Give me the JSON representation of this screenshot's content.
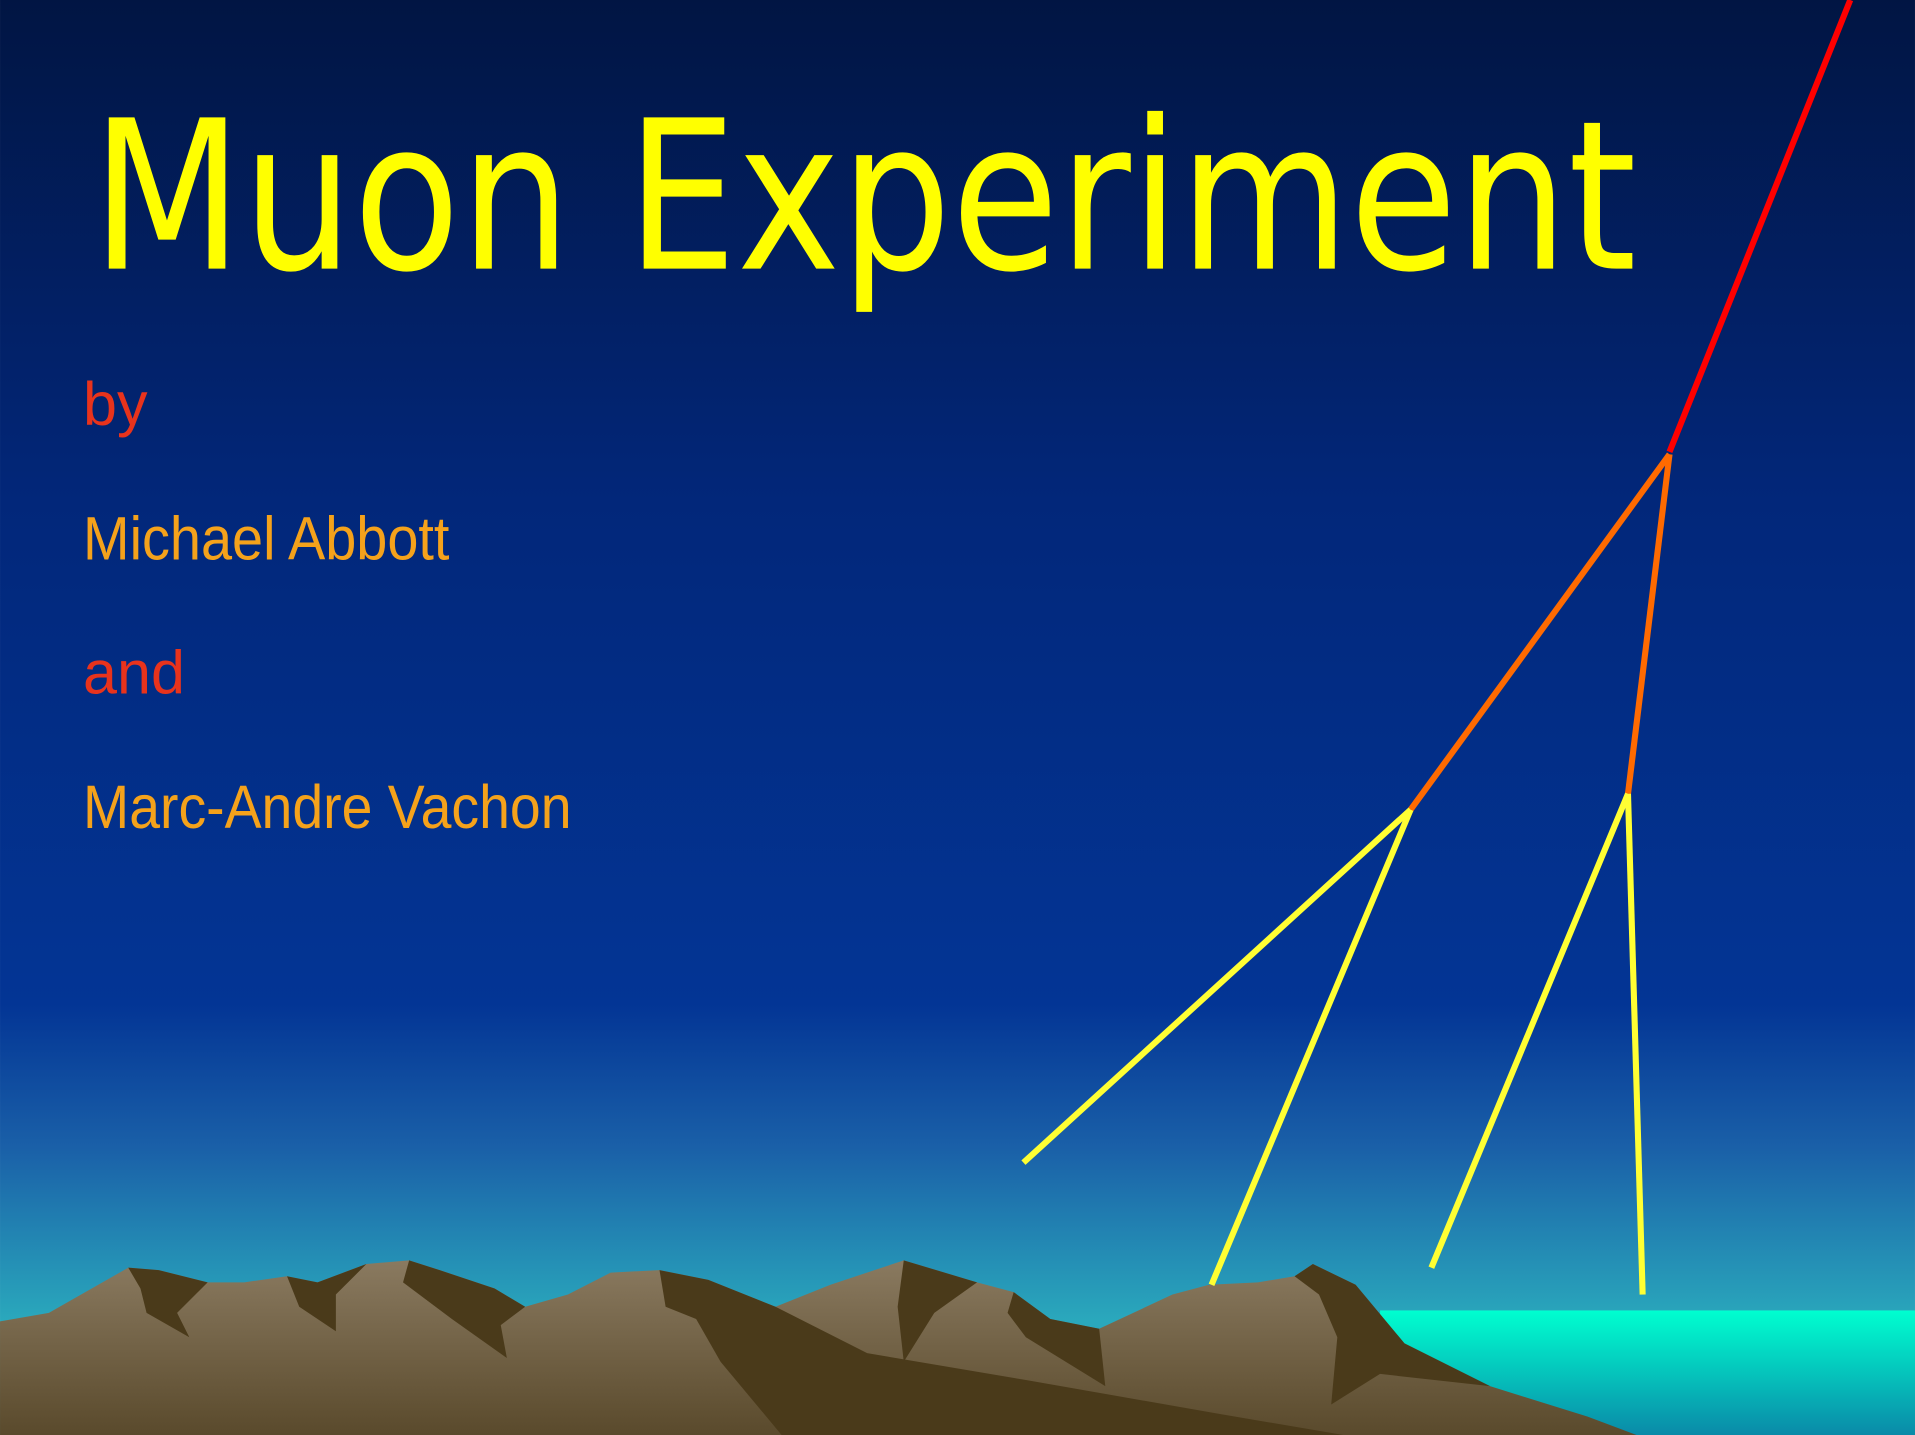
{
  "title": "Muon Experiment",
  "lines": [
    "by",
    "Michael Abbott",
    "and",
    "Marc-Andre Vachon"
  ]
}
